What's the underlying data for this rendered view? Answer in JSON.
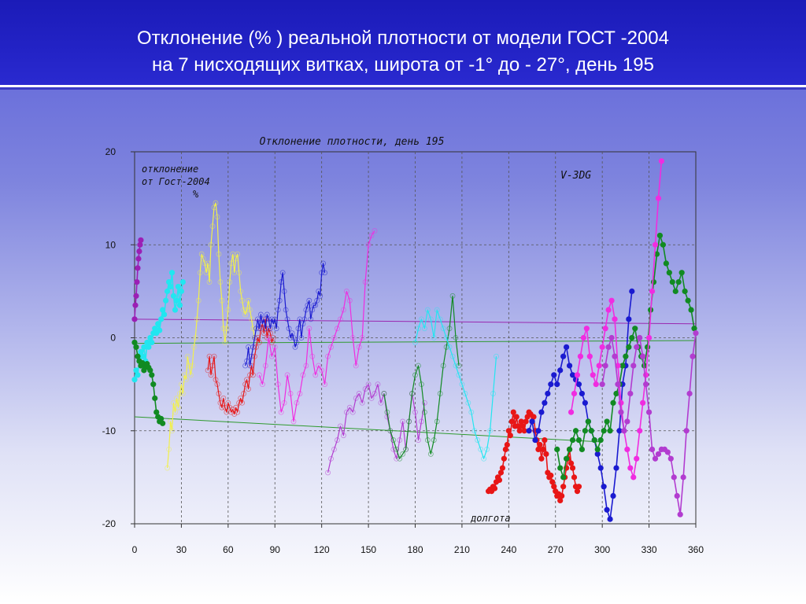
{
  "slide": {
    "title_line1": "Отклонение (% ) реальной плотности от модели ГОСТ -2004",
    "title_line2": "на 7 нисходящих витках, широта  от -1° до - 27°,  день 195"
  },
  "chart_data": {
    "type": "line",
    "title": "Отклонение плотности, день 195",
    "ylabel_lines": [
      "отклонение",
      "от Гост-2004",
      "%"
    ],
    "xlabel": "долгота",
    "model_label": "V-3DG",
    "xlim": [
      0,
      360
    ],
    "ylim": [
      -20,
      20
    ],
    "x_ticks": [
      0,
      30,
      60,
      90,
      120,
      150,
      180,
      210,
      240,
      270,
      300,
      330,
      360
    ],
    "y_ticks": [
      -20,
      -10,
      0,
      10,
      20
    ],
    "grid": true,
    "colors": {
      "purple": "#9b1fb5",
      "cyan": "#22e6f0",
      "green": "#118a22",
      "yellow": "#f2f04a",
      "red": "#e81616",
      "blue": "#1a1ad0",
      "magenta": "#f02ce0",
      "violet": "#b23cd0",
      "trend_purple": "#9a28b0",
      "trend_green": "#2e9a2e"
    },
    "trend_lines": [
      {
        "color_key": "trend_purple",
        "x": [
          0,
          360
        ],
        "y": [
          2.0,
          1.5
        ]
      },
      {
        "color_key": "trend_green",
        "x": [
          0,
          360
        ],
        "y": [
          -0.6,
          -0.3
        ]
      },
      {
        "color_key": "trend_green",
        "x": [
          0,
          300
        ],
        "y": [
          -8.5,
          -11.2
        ]
      }
    ],
    "series": [
      {
        "color_key": "purple",
        "markers": true,
        "x": [
          0,
          0.5,
          1,
          1.5,
          2,
          2.5,
          3,
          3.5,
          4
        ],
        "y": [
          2,
          3.5,
          4.5,
          6,
          7.5,
          8.5,
          9.3,
          10,
          10.5
        ]
      },
      {
        "color_key": "cyan",
        "markers": true,
        "x": [
          0,
          1,
          2,
          3,
          4,
          5,
          6,
          7,
          8,
          9,
          10,
          11,
          12,
          13,
          14,
          15,
          16,
          17,
          18,
          19,
          20,
          21,
          22,
          23,
          24,
          25,
          26,
          27,
          28,
          29,
          30,
          31
        ],
        "y": [
          -4.5,
          -3.5,
          -4,
          -2.5,
          -1.5,
          -2,
          -1,
          -2.5,
          -0.5,
          -1,
          0,
          -0.5,
          0.5,
          1,
          0.5,
          1.5,
          0.8,
          2,
          3,
          2.5,
          4,
          5,
          6,
          5.5,
          7,
          4.5,
          3,
          4,
          5.5,
          3.5,
          5,
          6
        ]
      },
      {
        "color_key": "green",
        "markers": true,
        "x": [
          0,
          1,
          2,
          3,
          4,
          5,
          6,
          7,
          8,
          9,
          10,
          11,
          12,
          13,
          14,
          15,
          16,
          17,
          18
        ],
        "y": [
          -0.5,
          -1,
          -2,
          -2.5,
          -3,
          -2.7,
          -3.5,
          -3,
          -2.8,
          -3.2,
          -3.5,
          -4,
          -5,
          -6.5,
          -8,
          -8.5,
          -9,
          -8.7,
          -9.2
        ]
      },
      {
        "color_key": "yellow",
        "markers": false,
        "x": [
          21,
          22,
          23,
          24,
          25,
          26,
          27,
          28,
          29,
          30,
          31,
          32,
          33,
          34,
          35,
          36,
          37,
          38,
          39,
          40,
          41,
          42,
          43,
          44,
          45,
          46,
          47,
          48,
          49,
          50,
          51,
          52,
          53,
          54,
          55,
          56,
          57,
          58,
          59,
          60,
          61,
          62,
          63,
          64,
          65,
          66,
          67,
          68,
          69,
          70,
          71,
          72,
          73,
          74,
          75,
          76,
          77
        ],
        "y": [
          -14,
          -12,
          -9,
          -10,
          -7,
          -8,
          -6.5,
          -7.5,
          -6,
          -5,
          -6,
          -4,
          -4.5,
          -2,
          -3,
          -4,
          -3,
          -1,
          0,
          2,
          4,
          7,
          9,
          8.5,
          8,
          7,
          8,
          6,
          10,
          12,
          14,
          14.5,
          13,
          9,
          6,
          4,
          1,
          -0.5,
          1,
          3,
          6,
          8,
          9,
          7,
          8.5,
          9,
          7,
          5,
          4,
          3,
          2.5,
          3,
          4,
          3,
          2,
          1,
          0
        ]
      },
      {
        "color_key": "red",
        "markers": false,
        "x": [
          47,
          48,
          49,
          50,
          51,
          52,
          53,
          54,
          55,
          56,
          57,
          58,
          59,
          60,
          61,
          62,
          63,
          64,
          65,
          66,
          67,
          68,
          69,
          70,
          71,
          72,
          73,
          74,
          75,
          76,
          77,
          78,
          79,
          80,
          81,
          82,
          83,
          84,
          85,
          86,
          87,
          88,
          89
        ],
        "y": [
          -3.5,
          -2,
          -4,
          -3,
          -2,
          -4.5,
          -5,
          -6,
          -7,
          -7.5,
          -6.5,
          -7.5,
          -8,
          -7,
          -7.5,
          -8,
          -7.7,
          -8.2,
          -7.5,
          -8,
          -7,
          -6.5,
          -7,
          -6,
          -5,
          -4.5,
          -5.5,
          -4,
          -3,
          -4,
          -2,
          -1,
          0,
          -0.5,
          1,
          1.5,
          0.5,
          2,
          0,
          1,
          0.5,
          -0.5,
          0
        ]
      },
      {
        "color_key": "blue",
        "markers": false,
        "x": [
          71,
          72,
          73,
          74,
          75,
          76,
          77,
          78,
          79,
          80,
          81,
          82,
          83,
          84,
          85,
          86,
          87,
          88,
          89,
          90,
          91,
          92,
          93,
          94,
          95,
          96,
          97,
          98,
          99,
          100,
          101,
          102,
          103,
          104,
          105,
          106,
          107,
          108,
          109,
          110,
          111,
          112,
          113,
          114,
          115,
          116,
          117,
          118,
          119,
          120,
          121,
          122
        ],
        "y": [
          -3,
          -2.5,
          -1,
          -3,
          -2,
          -1,
          0,
          1,
          2,
          1,
          2.5,
          1.5,
          2,
          1,
          2.5,
          2,
          1,
          2,
          1.5,
          2,
          1,
          3,
          4,
          6,
          7,
          5,
          3,
          2,
          1,
          0,
          0.5,
          0,
          -1,
          -0.5,
          1,
          2,
          0,
          1.5,
          2,
          3,
          3.5,
          4,
          2,
          3,
          3.5,
          3.5,
          4,
          5,
          4.5,
          7,
          8,
          7
        ]
      },
      {
        "color_key": "magenta",
        "markers": false,
        "x": [
          80,
          82,
          84,
          86,
          88,
          90,
          92,
          94,
          96,
          98,
          100,
          102,
          104,
          106,
          108,
          110,
          112,
          114,
          116,
          118,
          120,
          122,
          124,
          126,
          128,
          130,
          132,
          134,
          136,
          138,
          140,
          142,
          144,
          146,
          148,
          150,
          152,
          154
        ],
        "y": [
          -4,
          -5,
          -3,
          0,
          -2,
          -1,
          -5,
          -8,
          -7,
          -4,
          -6,
          -9,
          -7,
          -6,
          -4,
          -3,
          1,
          -2,
          -4,
          -3,
          -3.5,
          -5,
          -2,
          -1,
          0,
          1,
          2,
          3,
          5,
          4,
          0,
          -3,
          -1,
          0,
          6,
          10,
          11,
          11.5
        ]
      },
      {
        "color_key": "violet",
        "markers": false,
        "x": [
          124,
          126,
          128,
          130,
          132,
          134,
          136,
          138,
          140,
          142,
          144,
          146,
          148,
          150,
          152,
          154,
          156,
          158,
          160,
          162,
          164,
          166,
          168,
          170,
          172,
          174,
          176,
          178,
          180,
          182,
          184,
          186
        ],
        "y": [
          -14.5,
          -13,
          -12,
          -11,
          -9.5,
          -10.5,
          -8,
          -7.5,
          -8,
          -6.5,
          -6,
          -7,
          -5.5,
          -5,
          -6.5,
          -6,
          -5,
          -7,
          -6,
          -8.5,
          -10,
          -12,
          -13,
          -11,
          -9,
          -12,
          -9,
          -6,
          -8,
          -11,
          -9,
          -7
        ]
      },
      {
        "color_key": "green",
        "markers": false,
        "x": [
          160,
          162,
          164,
          166,
          168,
          170,
          172,
          174,
          176,
          178,
          180,
          182,
          184,
          186,
          188,
          190,
          192,
          194,
          196,
          198,
          200,
          202,
          204,
          206,
          208
        ],
        "y": [
          -6,
          -8,
          -10,
          -11,
          -12,
          -13,
          -12.5,
          -12,
          -9,
          -6,
          -4,
          -3,
          -5,
          -8,
          -11,
          -12.5,
          -11,
          -9,
          -6,
          -3,
          -1,
          1,
          4.5,
          0,
          -3
        ]
      },
      {
        "color_key": "cyan",
        "markers": false,
        "x": [
          180,
          182,
          184,
          186,
          188,
          190,
          192,
          194,
          196,
          198,
          200,
          202,
          204,
          206,
          208,
          210,
          212,
          214,
          216,
          218,
          220,
          222,
          224,
          226,
          228,
          230,
          232
        ],
        "y": [
          -0.5,
          1,
          2,
          1,
          3,
          2,
          0,
          3,
          2,
          1,
          0,
          -1,
          -2,
          -3,
          -4,
          -5,
          -6,
          -7,
          -8,
          -10,
          -11,
          -12,
          -13,
          -12,
          -10,
          -6,
          -2
        ]
      },
      {
        "color_key": "red",
        "markers": true,
        "x": [
          227,
          228,
          229,
          230,
          231,
          232,
          233,
          234,
          235,
          236,
          237,
          238,
          239,
          240,
          241,
          242,
          243,
          244,
          245,
          246,
          247,
          248,
          249,
          250,
          251,
          252,
          253,
          254,
          255,
          256,
          257,
          258,
          259,
          260,
          261,
          262,
          263,
          264,
          265,
          266,
          267,
          268,
          269,
          270,
          271,
          272,
          273,
          274,
          275,
          276,
          277,
          278,
          279,
          280,
          281,
          282,
          283,
          284,
          285
        ],
        "y": [
          -16.5,
          -16.3,
          -16.5,
          -16,
          -16.2,
          -15.5,
          -15,
          -15.3,
          -14.5,
          -14,
          -13,
          -12,
          -11.5,
          -10,
          -10.5,
          -9,
          -8,
          -9.5,
          -8.5,
          -9.5,
          -10,
          -9,
          -9.5,
          -10,
          -9,
          -8.5,
          -8,
          -8.2,
          -9,
          -8.5,
          -10,
          -11,
          -12,
          -11.5,
          -13,
          -12,
          -11,
          -12.5,
          -14.5,
          -15,
          -14.8,
          -15.5,
          -16,
          -16.5,
          -17,
          -16.8,
          -17.5,
          -17,
          -16,
          -15,
          -14,
          -13,
          -12,
          -13.5,
          -14,
          -15,
          -16,
          -16.5,
          -16
        ]
      },
      {
        "color_key": "blue",
        "markers": true,
        "x": [
          253,
          255,
          257,
          259,
          261,
          263,
          265,
          267,
          269,
          271,
          273,
          275,
          277,
          279,
          281,
          283,
          285,
          287,
          289,
          291,
          293,
          295,
          297,
          299,
          301,
          303,
          305,
          307,
          309,
          311,
          313,
          315,
          317,
          319
        ],
        "y": [
          -10,
          -9,
          -11,
          -10,
          -8,
          -7,
          -6,
          -5,
          -4,
          -5,
          -3.5,
          -2,
          -1,
          -3,
          -4,
          -4.5,
          -5,
          -6,
          -7,
          -9,
          -10,
          -11,
          -12.5,
          -14,
          -16,
          -18.5,
          -19.5,
          -17,
          -14,
          -10,
          -5,
          -3,
          2,
          5
        ]
      },
      {
        "color_key": "green",
        "markers": true,
        "x": [
          271,
          273,
          275,
          277,
          279,
          281,
          283,
          285,
          287,
          289,
          291,
          293,
          295,
          297,
          299,
          301,
          303,
          305,
          307,
          309,
          311,
          313,
          315,
          317,
          319,
          321,
          323,
          325,
          327,
          329,
          331,
          333,
          335,
          337,
          339,
          341,
          343,
          345,
          347,
          349,
          351,
          353,
          355,
          357,
          359
        ],
        "y": [
          -12,
          -14,
          -15,
          -13,
          -12,
          -11,
          -10,
          -11,
          -12,
          -10,
          -9,
          -10,
          -11,
          -12,
          -11,
          -10,
          -9,
          -10,
          -7,
          -6,
          -5,
          -3,
          -2,
          -1,
          0,
          1,
          -1,
          -2,
          -3,
          -1,
          3,
          6,
          9,
          11,
          10,
          8,
          7,
          6,
          5,
          6,
          7,
          5,
          4,
          3,
          1
        ]
      },
      {
        "color_key": "magenta",
        "markers": true,
        "x": [
          280,
          282,
          284,
          286,
          288,
          290,
          292,
          294,
          296,
          298,
          300,
          302,
          304,
          306,
          308,
          310,
          312,
          314,
          316,
          318,
          320,
          322,
          324,
          326,
          328,
          330,
          332,
          334,
          336,
          338
        ],
        "y": [
          -8,
          -6,
          -4,
          -2,
          0,
          1,
          -2,
          -4,
          -5,
          -3,
          -1,
          1,
          3,
          4,
          2,
          -3,
          -7,
          -10,
          -12,
          -14,
          -15,
          -13,
          -10,
          -7,
          -4,
          0,
          5,
          10,
          15,
          19
        ]
      },
      {
        "color_key": "violet",
        "markers": true,
        "x": [
          300,
          302,
          304,
          306,
          308,
          310,
          312,
          314,
          316,
          318,
          320,
          322,
          324,
          326,
          328,
          330,
          332,
          334,
          336,
          338,
          340,
          342,
          344,
          346,
          348,
          350,
          352,
          354,
          356,
          358,
          360
        ],
        "y": [
          -5,
          -3,
          -1,
          0,
          -2,
          -5,
          -8,
          -10,
          -9,
          -6,
          -3,
          -1,
          0,
          -2,
          -5,
          -8,
          -12,
          -13,
          -12.5,
          -12,
          -12,
          -12.3,
          -13,
          -15,
          -17,
          -19,
          -15,
          -10,
          -6,
          -2,
          0.5
        ]
      }
    ]
  }
}
